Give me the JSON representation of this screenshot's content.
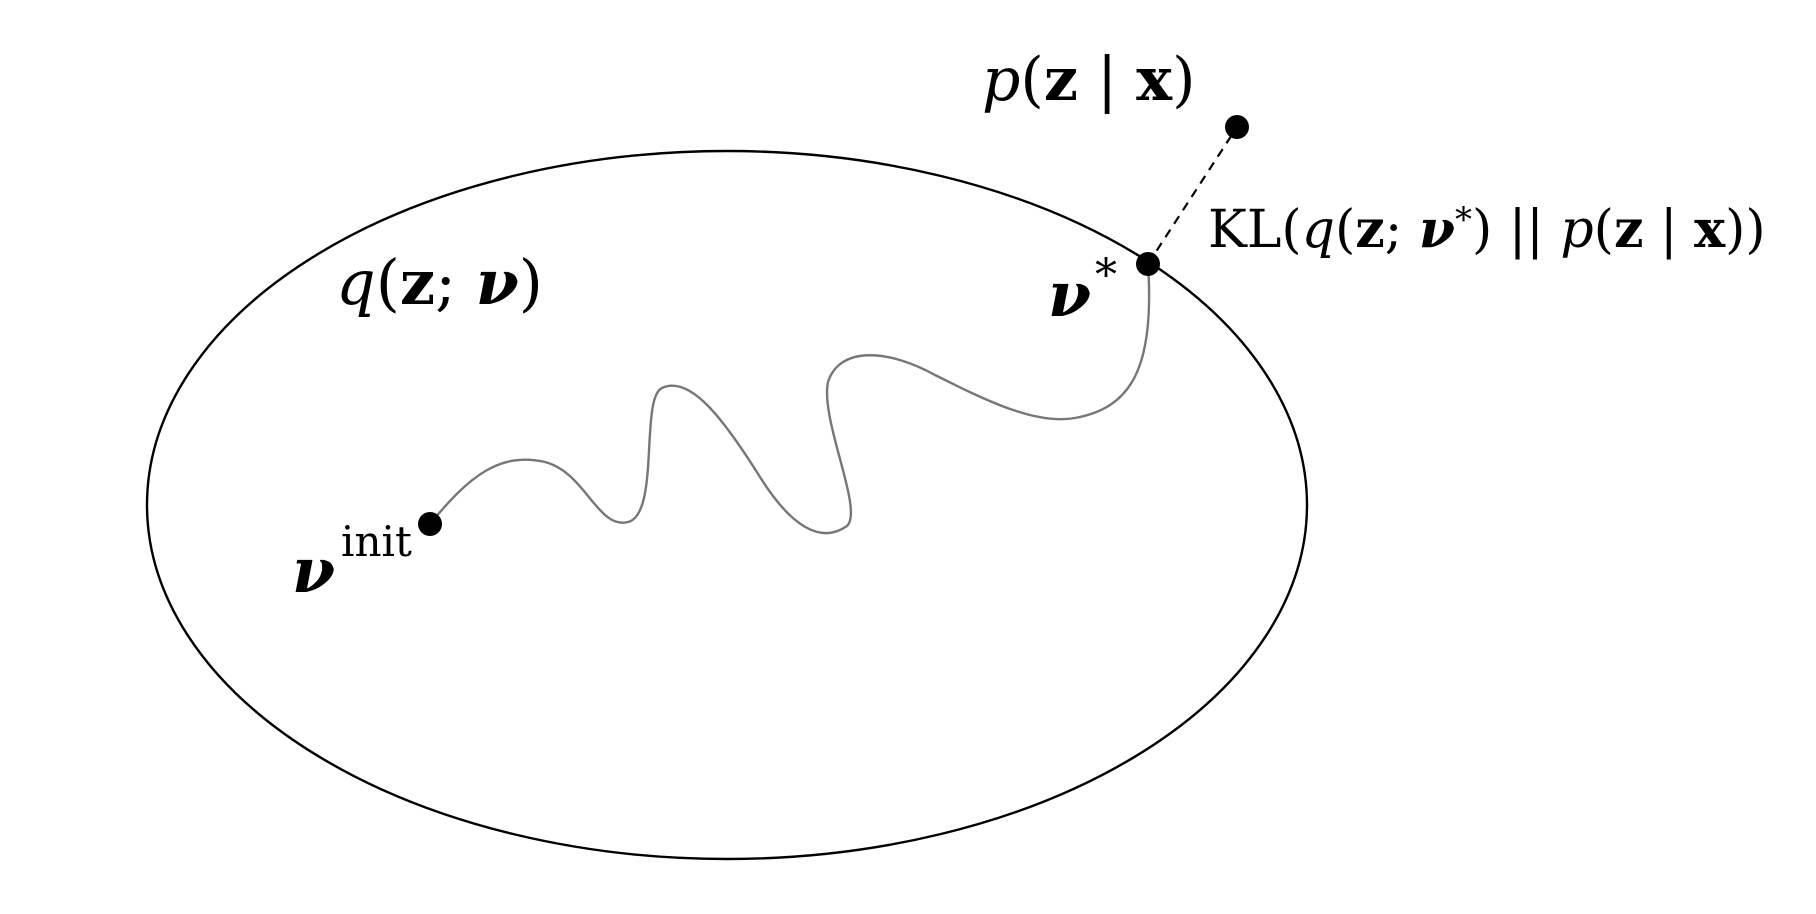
{
  "labels": {
    "variational_family": {
      "func": "q",
      "open": "(",
      "var": "z",
      "sep": "; ",
      "param": "ν",
      "close": ")"
    },
    "posterior": {
      "func": "p",
      "open": "(",
      "var": "z",
      "bar": " | ",
      "cond": "x",
      "close": ")"
    },
    "kl": {
      "op": "KL(",
      "func_q": "q",
      "open_q": "(",
      "var_q": "z",
      "sep": "; ",
      "param": "ν",
      "star": "*",
      "close_q": ")",
      "divider": " || ",
      "func_p": "p",
      "open_p": "(",
      "var_p": "z",
      "bar": " | ",
      "cond": "x",
      "close_p": "))"
    },
    "optimum": {
      "symbol": "ν",
      "sup": "*"
    },
    "initial": {
      "symbol": "ν",
      "sup": "init"
    }
  },
  "colors": {
    "outline": "#000000",
    "path": "#777777",
    "point": "#000000",
    "background": "#ffffff"
  }
}
